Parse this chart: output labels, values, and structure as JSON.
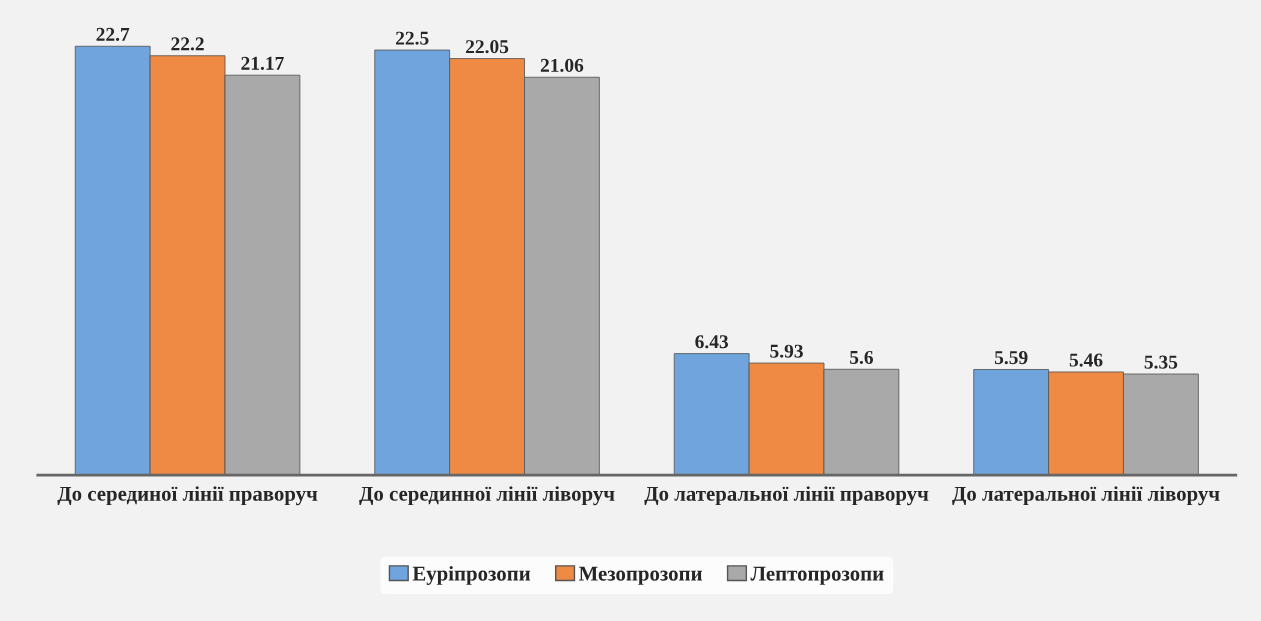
{
  "chart_data": {
    "type": "bar",
    "categories": [
      "До серединої лінії праворуч",
      "До серединної лінії ліворуч",
      "До латеральної лінії праворуч",
      "До латеральної лінії ліворуч"
    ],
    "series": [
      {
        "name": "Еуріпрозопи",
        "color": "#6fa5dc",
        "values": [
          22.7,
          22.5,
          6.43,
          5.59
        ],
        "value_labels": [
          "22.7",
          "22.5",
          "6.43",
          "5.59"
        ]
      },
      {
        "name": "Мезопрозопи",
        "color": "#ee8a43",
        "values": [
          22.2,
          22.05,
          5.93,
          5.46
        ],
        "value_labels": [
          "22.2",
          "22.05",
          "5.93",
          "5.46"
        ]
      },
      {
        "name": "Лептопрозопи",
        "color": "#a9a9a9",
        "values": [
          21.17,
          21.06,
          5.6,
          5.35
        ],
        "value_labels": [
          "21.17",
          "21.06",
          "5.6",
          "5.35"
        ]
      }
    ],
    "tick_labels": "x",
    "grid": false,
    "legend": "bottom"
  }
}
